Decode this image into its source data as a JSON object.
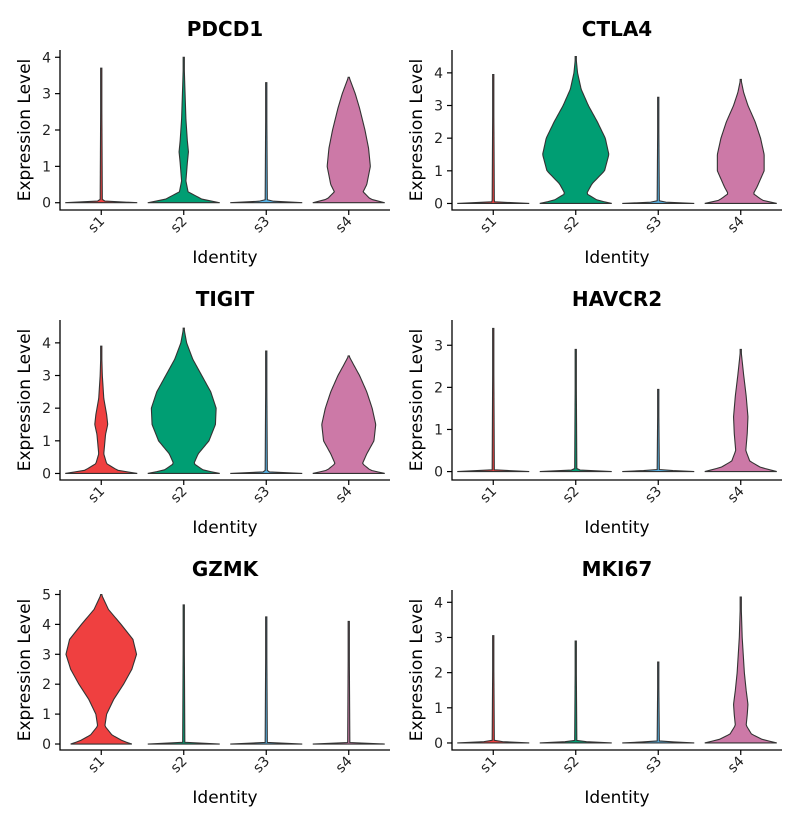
{
  "colors": {
    "s1": "#ef4040",
    "s2": "#009e73",
    "s3": "#56b4e9",
    "s4": "#cc79a7"
  },
  "chart_data": [
    {
      "type": "violin",
      "title": "PDCD1",
      "xlabel": "Identity",
      "ylabel": "Expression Level",
      "categories": [
        "s1",
        "s2",
        "s3",
        "s4"
      ],
      "y_ticks": [
        0,
        1,
        2,
        3,
        4
      ],
      "ylim": [
        -0.2,
        4.2
      ],
      "series": [
        {
          "max": 3.7,
          "profile": [
            [
              0,
              1.0
            ],
            [
              0.05,
              0.03
            ],
            [
              3.7,
              0.01
            ]
          ]
        },
        {
          "max": 4.0,
          "profile": [
            [
              0,
              1.0
            ],
            [
              0.1,
              0.5
            ],
            [
              0.3,
              0.12
            ],
            [
              0.6,
              0.06
            ],
            [
              1.1,
              0.1
            ],
            [
              1.4,
              0.13
            ],
            [
              1.7,
              0.1
            ],
            [
              2.3,
              0.06
            ],
            [
              3.2,
              0.03
            ],
            [
              4.0,
              0.005
            ]
          ]
        },
        {
          "max": 3.3,
          "profile": [
            [
              0,
              1.0
            ],
            [
              0.05,
              0.03
            ],
            [
              3.3,
              0.01
            ]
          ]
        },
        {
          "max": 3.45,
          "profile": [
            [
              0,
              1.0
            ],
            [
              0.1,
              0.6
            ],
            [
              0.3,
              0.4
            ],
            [
              0.5,
              0.5
            ],
            [
              1.0,
              0.6
            ],
            [
              1.5,
              0.55
            ],
            [
              2.0,
              0.45
            ],
            [
              2.6,
              0.3
            ],
            [
              3.0,
              0.18
            ],
            [
              3.45,
              0.01
            ]
          ]
        }
      ]
    },
    {
      "type": "violin",
      "title": "CTLA4",
      "xlabel": "Identity",
      "ylabel": "Expression Level",
      "categories": [
        "s1",
        "s2",
        "s3",
        "s4"
      ],
      "y_ticks": [
        0,
        1,
        2,
        3,
        4
      ],
      "ylim": [
        -0.2,
        4.7
      ],
      "series": [
        {
          "max": 3.95,
          "profile": [
            [
              0,
              1.0
            ],
            [
              0.05,
              0.03
            ],
            [
              3.95,
              0.01
            ]
          ]
        },
        {
          "max": 4.5,
          "profile": [
            [
              0,
              1.0
            ],
            [
              0.1,
              0.6
            ],
            [
              0.3,
              0.3
            ],
            [
              0.6,
              0.45
            ],
            [
              1.0,
              0.8
            ],
            [
              1.5,
              0.92
            ],
            [
              2.0,
              0.82
            ],
            [
              2.5,
              0.6
            ],
            [
              3.0,
              0.35
            ],
            [
              3.5,
              0.15
            ],
            [
              4.0,
              0.05
            ],
            [
              4.5,
              0.005
            ]
          ]
        },
        {
          "max": 3.25,
          "profile": [
            [
              0,
              1.0
            ],
            [
              0.05,
              0.03
            ],
            [
              3.25,
              0.01
            ]
          ]
        },
        {
          "max": 3.8,
          "profile": [
            [
              0,
              1.0
            ],
            [
              0.1,
              0.6
            ],
            [
              0.3,
              0.35
            ],
            [
              0.5,
              0.45
            ],
            [
              1.0,
              0.65
            ],
            [
              1.5,
              0.65
            ],
            [
              2.0,
              0.55
            ],
            [
              2.5,
              0.4
            ],
            [
              3.0,
              0.2
            ],
            [
              3.4,
              0.08
            ],
            [
              3.8,
              0.005
            ]
          ]
        }
      ]
    },
    {
      "type": "violin",
      "title": "TIGIT",
      "xlabel": "Identity",
      "ylabel": "Expression Level",
      "categories": [
        "s1",
        "s2",
        "s3",
        "s4"
      ],
      "y_ticks": [
        0,
        1,
        2,
        3,
        4
      ],
      "ylim": [
        -0.2,
        4.7
      ],
      "series": [
        {
          "max": 3.9,
          "profile": [
            [
              0,
              1.0
            ],
            [
              0.1,
              0.45
            ],
            [
              0.3,
              0.15
            ],
            [
              0.6,
              0.07
            ],
            [
              1.2,
              0.12
            ],
            [
              1.5,
              0.18
            ],
            [
              1.8,
              0.15
            ],
            [
              2.3,
              0.07
            ],
            [
              3.0,
              0.03
            ],
            [
              3.9,
              0.005
            ]
          ]
        },
        {
          "max": 4.45,
          "profile": [
            [
              0,
              1.0
            ],
            [
              0.1,
              0.55
            ],
            [
              0.3,
              0.28
            ],
            [
              0.6,
              0.4
            ],
            [
              1.0,
              0.7
            ],
            [
              1.5,
              0.88
            ],
            [
              2.0,
              0.9
            ],
            [
              2.5,
              0.75
            ],
            [
              3.0,
              0.5
            ],
            [
              3.5,
              0.25
            ],
            [
              4.0,
              0.08
            ],
            [
              4.45,
              0.005
            ]
          ]
        },
        {
          "max": 3.75,
          "profile": [
            [
              0,
              1.0
            ],
            [
              0.05,
              0.03
            ],
            [
              3.75,
              0.01
            ]
          ]
        },
        {
          "max": 3.6,
          "profile": [
            [
              0,
              1.0
            ],
            [
              0.1,
              0.6
            ],
            [
              0.3,
              0.38
            ],
            [
              0.6,
              0.5
            ],
            [
              1.0,
              0.7
            ],
            [
              1.5,
              0.75
            ],
            [
              2.0,
              0.65
            ],
            [
              2.5,
              0.5
            ],
            [
              3.0,
              0.3
            ],
            [
              3.3,
              0.15
            ],
            [
              3.6,
              0.005
            ]
          ]
        }
      ]
    },
    {
      "type": "violin",
      "title": "HAVCR2",
      "xlabel": "Identity",
      "ylabel": "Expression Level",
      "categories": [
        "s1",
        "s2",
        "s3",
        "s4"
      ],
      "y_ticks": [
        0,
        1,
        2,
        3
      ],
      "ylim": [
        -0.2,
        3.6
      ],
      "series": [
        {
          "max": 3.4,
          "profile": [
            [
              0,
              1.0
            ],
            [
              0.04,
              0.03
            ],
            [
              3.4,
              0.01
            ]
          ]
        },
        {
          "max": 2.9,
          "profile": [
            [
              0,
              1.0
            ],
            [
              0.04,
              0.03
            ],
            [
              2.9,
              0.01
            ]
          ]
        },
        {
          "max": 1.95,
          "profile": [
            [
              0,
              1.0
            ],
            [
              0.04,
              0.03
            ],
            [
              1.95,
              0.01
            ]
          ]
        },
        {
          "max": 2.9,
          "profile": [
            [
              0,
              1.0
            ],
            [
              0.1,
              0.55
            ],
            [
              0.25,
              0.25
            ],
            [
              0.5,
              0.14
            ],
            [
              0.9,
              0.18
            ],
            [
              1.3,
              0.2
            ],
            [
              1.8,
              0.15
            ],
            [
              2.3,
              0.08
            ],
            [
              2.9,
              0.005
            ]
          ]
        }
      ]
    },
    {
      "type": "violin",
      "title": "GZMK",
      "xlabel": "Identity",
      "ylabel": "Expression Level",
      "categories": [
        "s1",
        "s2",
        "s3",
        "s4"
      ],
      "y_ticks": [
        0,
        1,
        2,
        3,
        4,
        5
      ],
      "ylim": [
        -0.2,
        5.15
      ],
      "series": [
        {
          "max": 5.0,
          "profile": [
            [
              0,
              0.85
            ],
            [
              0.1,
              0.6
            ],
            [
              0.3,
              0.3
            ],
            [
              0.6,
              0.1
            ],
            [
              1.0,
              0.15
            ],
            [
              1.5,
              0.35
            ],
            [
              2.0,
              0.62
            ],
            [
              2.5,
              0.85
            ],
            [
              3.0,
              0.98
            ],
            [
              3.5,
              0.88
            ],
            [
              4.0,
              0.55
            ],
            [
              4.5,
              0.2
            ],
            [
              5.0,
              0.005
            ]
          ]
        },
        {
          "max": 4.65,
          "profile": [
            [
              0,
              1.0
            ],
            [
              0.05,
              0.03
            ],
            [
              4.65,
              0.01
            ]
          ]
        },
        {
          "max": 4.25,
          "profile": [
            [
              0,
              1.0
            ],
            [
              0.05,
              0.03
            ],
            [
              4.25,
              0.01
            ]
          ]
        },
        {
          "max": 4.1,
          "profile": [
            [
              0,
              1.0
            ],
            [
              0.05,
              0.03
            ],
            [
              4.1,
              0.01
            ]
          ]
        }
      ]
    },
    {
      "type": "violin",
      "title": "MKI67",
      "xlabel": "Identity",
      "ylabel": "Expression Level",
      "categories": [
        "s1",
        "s2",
        "s3",
        "s4"
      ],
      "y_ticks": [
        0,
        1,
        2,
        3,
        4
      ],
      "ylim": [
        -0.2,
        4.35
      ],
      "series": [
        {
          "max": 3.05,
          "profile": [
            [
              0,
              1.0
            ],
            [
              0.05,
              0.03
            ],
            [
              3.05,
              0.01
            ]
          ]
        },
        {
          "max": 2.9,
          "profile": [
            [
              0,
              1.0
            ],
            [
              0.05,
              0.03
            ],
            [
              2.9,
              0.01
            ]
          ]
        },
        {
          "max": 2.3,
          "profile": [
            [
              0,
              1.0
            ],
            [
              0.05,
              0.03
            ],
            [
              2.3,
              0.01
            ]
          ]
        },
        {
          "max": 4.15,
          "profile": [
            [
              0,
              1.0
            ],
            [
              0.1,
              0.6
            ],
            [
              0.25,
              0.3
            ],
            [
              0.5,
              0.15
            ],
            [
              0.8,
              0.18
            ],
            [
              1.1,
              0.2
            ],
            [
              1.5,
              0.15
            ],
            [
              2.0,
              0.1
            ],
            [
              3.0,
              0.04
            ],
            [
              4.15,
              0.005
            ]
          ]
        }
      ]
    }
  ]
}
